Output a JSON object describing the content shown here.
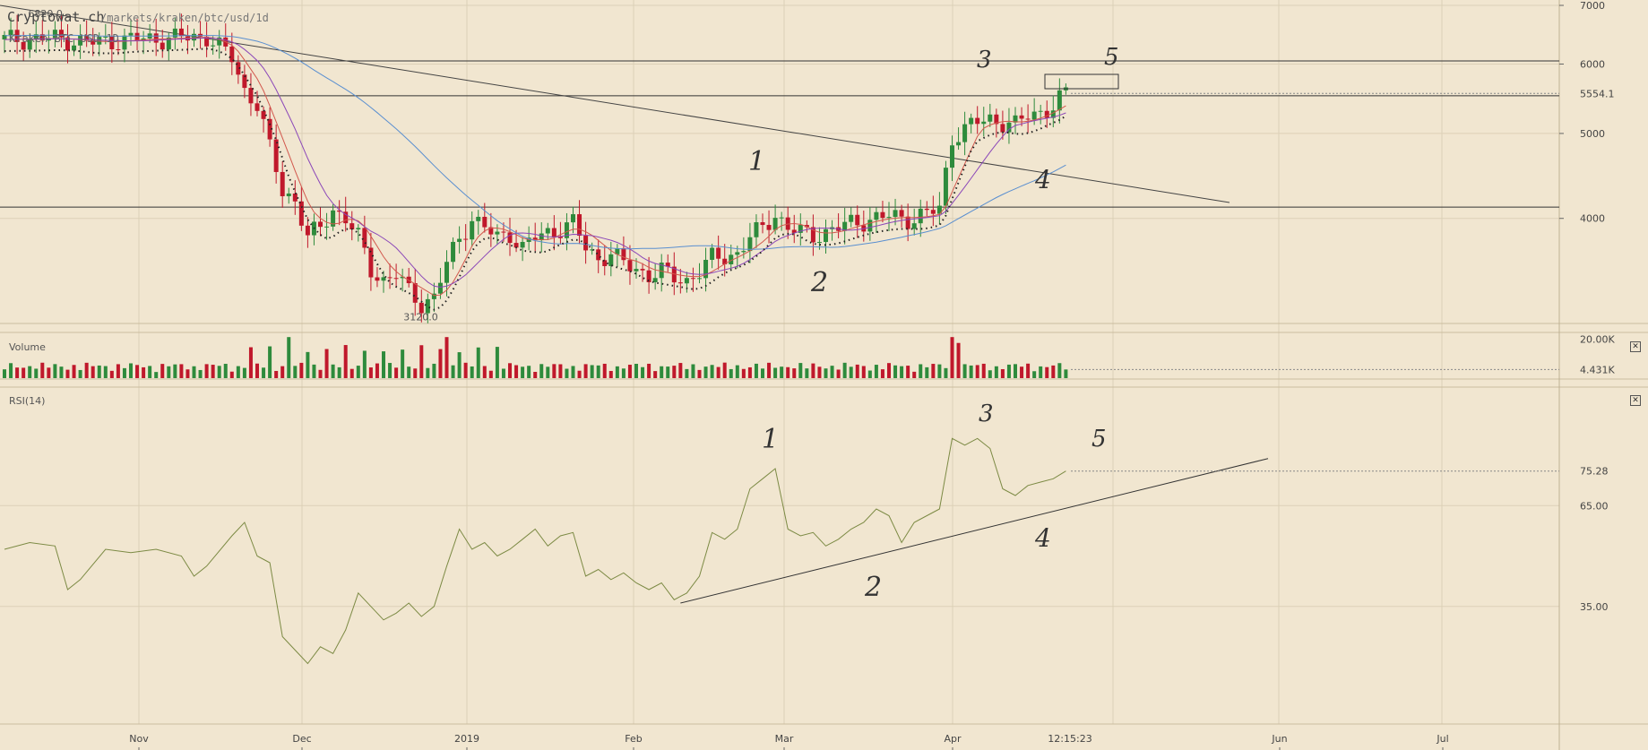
{
  "header": {
    "site": "Cryptowat.ch",
    "path": "/markets/kraken/btc/usd/1d",
    "market": "Kraken BTC USD 1D"
  },
  "panes": {
    "volume_label": "Volume",
    "rsi_label": "RSI(14)"
  },
  "annotations": {
    "price_high": "6820.0",
    "price_low": "3120.0",
    "last_price": "5554.1",
    "clock": "12:15:23",
    "volume_max": "20.00K",
    "volume_last": "4.431K",
    "rsi_last": "75.28"
  },
  "colors": {
    "background": "#f1e6d0",
    "up": "#2e8b3c",
    "down": "#c0182b",
    "ema_red": "#d2584d",
    "ema_purple": "#8b47b8",
    "ma_blue": "#5a8fd0",
    "rsi_line": "#7c8a44",
    "grid": "#dcd0b7"
  },
  "chart_data": [
    {
      "type": "candlestick",
      "title": "Kraken BTC USD 1D",
      "y_ticks": [
        "7000",
        "6000",
        "5000",
        "4000"
      ],
      "x_ticks": [
        "Nov",
        "Dec",
        "2019",
        "Feb",
        "Mar",
        "Apr",
        "Jun",
        "Jul"
      ],
      "ylim": [
        3100,
        7000
      ],
      "y_scale": "log",
      "horizontal_levels": [
        6050,
        5520,
        4120
      ],
      "ohlc_close_path": [
        [
          0,
          6400
        ],
        [
          8,
          6420
        ],
        [
          14,
          6350
        ],
        [
          20,
          6400
        ],
        [
          26,
          6420
        ],
        [
          32,
          6450
        ],
        [
          36,
          6100
        ],
        [
          38,
          5600
        ],
        [
          40,
          5400
        ],
        [
          42,
          4800
        ],
        [
          44,
          4300
        ],
        [
          46,
          4200
        ],
        [
          48,
          3800
        ],
        [
          50,
          3900
        ],
        [
          52,
          4100
        ],
        [
          54,
          4000
        ],
        [
          56,
          3800
        ],
        [
          58,
          3500
        ],
        [
          60,
          3400
        ],
        [
          62,
          3450
        ],
        [
          64,
          3300
        ],
        [
          66,
          3200
        ],
        [
          68,
          3250
        ],
        [
          70,
          3550
        ],
        [
          72,
          3800
        ],
        [
          74,
          4000
        ],
        [
          76,
          3900
        ],
        [
          78,
          3800
        ],
        [
          80,
          3850
        ],
        [
          82,
          3700
        ],
        [
          84,
          3800
        ],
        [
          86,
          3850
        ],
        [
          88,
          3900
        ],
        [
          90,
          3950
        ],
        [
          92,
          3700
        ],
        [
          94,
          3600
        ],
        [
          96,
          3650
        ],
        [
          98,
          3550
        ],
        [
          100,
          3500
        ],
        [
          102,
          3450
        ],
        [
          104,
          3480
        ],
        [
          106,
          3420
        ],
        [
          108,
          3400
        ],
        [
          110,
          3480
        ],
        [
          112,
          3600
        ],
        [
          114,
          3620
        ],
        [
          116,
          3650
        ],
        [
          118,
          3800
        ],
        [
          120,
          3900
        ],
        [
          122,
          4050
        ],
        [
          124,
          3900
        ],
        [
          126,
          3850
        ],
        [
          128,
          3830
        ],
        [
          130,
          3860
        ],
        [
          132,
          3900
        ],
        [
          134,
          3950
        ],
        [
          136,
          3980
        ],
        [
          138,
          4000
        ],
        [
          140,
          4020
        ],
        [
          142,
          4010
        ],
        [
          144,
          4000
        ],
        [
          146,
          4050
        ],
        [
          148,
          4100
        ],
        [
          150,
          4950
        ],
        [
          152,
          5050
        ],
        [
          154,
          5150
        ],
        [
          156,
          5200
        ],
        [
          158,
          5150
        ],
        [
          160,
          5100
        ],
        [
          162,
          5250
        ],
        [
          164,
          5300
        ],
        [
          166,
          5350
        ],
        [
          168,
          5554.1
        ]
      ],
      "series": [
        {
          "name": "EMA (red)"
        },
        {
          "name": "EMA (purple)"
        },
        {
          "name": "MA (blue)"
        },
        {
          "name": "Parabolic SAR"
        }
      ]
    },
    {
      "type": "bar",
      "title": "Volume",
      "y_ticks": [
        "20.00K",
        "4.431K"
      ],
      "ylim": [
        0,
        22000
      ],
      "last_value": 4431
    },
    {
      "type": "line",
      "title": "RSI(14)",
      "y_ticks": [
        "75.28",
        "65.00",
        "35.00"
      ],
      "ylim": [
        0,
        100
      ],
      "values": [
        [
          0,
          52
        ],
        [
          4,
          54
        ],
        [
          8,
          53
        ],
        [
          10,
          40
        ],
        [
          12,
          43
        ],
        [
          16,
          52
        ],
        [
          20,
          51
        ],
        [
          24,
          52
        ],
        [
          28,
          50
        ],
        [
          30,
          44
        ],
        [
          32,
          47
        ],
        [
          36,
          56
        ],
        [
          38,
          60
        ],
        [
          40,
          50
        ],
        [
          42,
          48
        ],
        [
          44,
          26
        ],
        [
          46,
          22
        ],
        [
          48,
          18
        ],
        [
          50,
          23
        ],
        [
          52,
          21
        ],
        [
          54,
          28
        ],
        [
          56,
          39
        ],
        [
          58,
          35
        ],
        [
          60,
          31
        ],
        [
          62,
          33
        ],
        [
          64,
          36
        ],
        [
          66,
          32
        ],
        [
          68,
          35
        ],
        [
          70,
          47
        ],
        [
          72,
          58
        ],
        [
          74,
          52
        ],
        [
          76,
          54
        ],
        [
          78,
          50
        ],
        [
          80,
          52
        ],
        [
          82,
          55
        ],
        [
          84,
          58
        ],
        [
          86,
          53
        ],
        [
          88,
          56
        ],
        [
          90,
          57
        ],
        [
          92,
          44
        ],
        [
          94,
          46
        ],
        [
          96,
          43
        ],
        [
          98,
          45
        ],
        [
          100,
          42
        ],
        [
          102,
          40
        ],
        [
          104,
          42
        ],
        [
          106,
          37
        ],
        [
          108,
          39
        ],
        [
          110,
          44
        ],
        [
          112,
          57
        ],
        [
          114,
          55
        ],
        [
          116,
          58
        ],
        [
          118,
          70
        ],
        [
          120,
          73
        ],
        [
          122,
          76
        ],
        [
          124,
          58
        ],
        [
          126,
          56
        ],
        [
          128,
          57
        ],
        [
          130,
          53
        ],
        [
          132,
          55
        ],
        [
          134,
          58
        ],
        [
          136,
          60
        ],
        [
          138,
          64
        ],
        [
          140,
          62
        ],
        [
          142,
          54
        ],
        [
          144,
          60
        ],
        [
          146,
          62
        ],
        [
          148,
          64
        ],
        [
          150,
          85
        ],
        [
          152,
          83
        ],
        [
          154,
          85
        ],
        [
          156,
          82
        ],
        [
          158,
          70
        ],
        [
          160,
          68
        ],
        [
          162,
          71
        ],
        [
          164,
          72
        ],
        [
          166,
          73
        ],
        [
          168,
          75.28
        ]
      ],
      "trendline": {
        "from": [
          107,
          36
        ],
        "to": [
          200,
          79
        ]
      }
    }
  ],
  "handwritten": [
    "1",
    "2",
    "3",
    "4",
    "5",
    "1",
    "2",
    "3",
    "4",
    "5"
  ]
}
